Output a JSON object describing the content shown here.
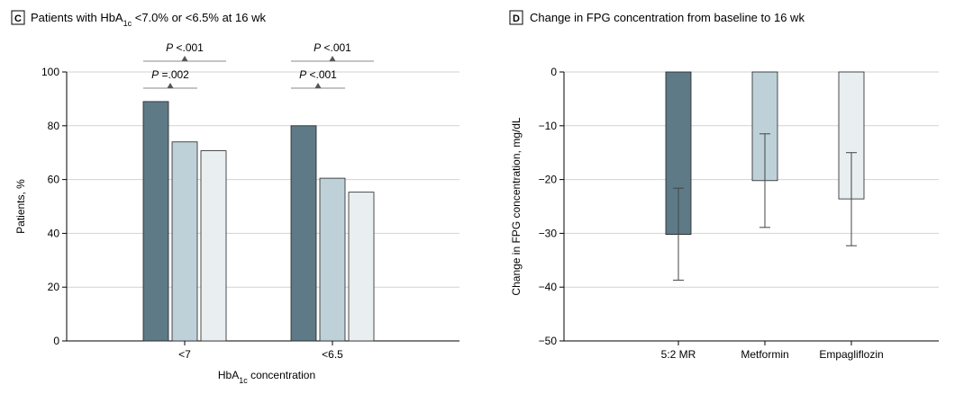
{
  "chart_data": [
    {
      "panel_letter": "C",
      "type": "bar",
      "title_parts": [
        "Patients with HbA",
        "1c",
        " <7.0% or <6.5% at 16 wk"
      ],
      "xlabel_parts": [
        "HbA",
        "1c",
        " concentration"
      ],
      "ylabel": "Patients, %",
      "ylim": [
        0,
        100
      ],
      "yticks": [
        0,
        20,
        40,
        60,
        80,
        100
      ],
      "grid": true,
      "categories": [
        "<7",
        "<6.5"
      ],
      "series": [
        {
          "values": [
            89,
            80
          ],
          "color": "#5e7a86"
        },
        {
          "values": [
            74,
            60.5
          ],
          "color": "#bed1d8"
        },
        {
          "values": [
            70.7,
            55.3
          ],
          "color": "#e9eef1"
        }
      ],
      "comparisons": [
        {
          "category": "<7",
          "series_from": 0,
          "series_to": 1,
          "p_italic": "P",
          "p_text": " =.002",
          "level": "low"
        },
        {
          "category": "<7",
          "series_from": 0,
          "series_to": 2,
          "p_italic": "P",
          "p_text": " <.001",
          "level": "high"
        },
        {
          "category": "<6.5",
          "series_from": 0,
          "series_to": 1,
          "p_italic": "P",
          "p_text": " <.001",
          "level": "low"
        },
        {
          "category": "<6.5",
          "series_from": 0,
          "series_to": 2,
          "p_italic": "P",
          "p_text": " <.001",
          "level": "high"
        }
      ]
    },
    {
      "panel_letter": "D",
      "type": "bar",
      "title": "Change in FPG concentration from baseline to 16 wk",
      "ylabel": "Change in FPG concentration, mg/dL",
      "ylim": [
        -50,
        0
      ],
      "yticks": [
        0,
        -10,
        -20,
        -30,
        -40,
        -50
      ],
      "grid": true,
      "categories": [
        "5:2 MR",
        "Metformin",
        "Empagliflozin"
      ],
      "values": [
        -30.2,
        -20.2,
        -23.6
      ],
      "error_low": [
        -38.7,
        -28.9,
        -32.3
      ],
      "error_high": [
        -21.6,
        -11.5,
        -15
      ],
      "colors": [
        "#5e7a86",
        "#bed1d8",
        "#e9eef1"
      ]
    }
  ]
}
